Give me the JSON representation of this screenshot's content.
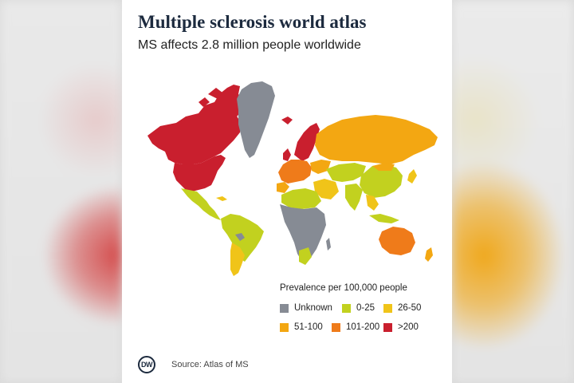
{
  "header": {
    "title": "Multiple sclerosis world atlas",
    "subtitle": "MS affects 2.8 million people worldwide"
  },
  "legend": {
    "title": "Prevalence per 100,000 people",
    "items": [
      {
        "label": "Unknown",
        "color": "#868b94"
      },
      {
        "label": "0-25",
        "color": "#c2d11f"
      },
      {
        "label": "26-50",
        "color": "#f0c419"
      },
      {
        "label": "51-100",
        "color": "#f3a712"
      },
      {
        "label": "101-200",
        "color": "#ef7b1a"
      },
      {
        "label": ">200",
        "color": "#c91f2e"
      }
    ]
  },
  "footer": {
    "logo": "DW",
    "source": "Source: Atlas of MS"
  },
  "map_data": {
    "regions": [
      {
        "name": "Canada",
        "category": ">200"
      },
      {
        "name": "United States",
        "category": ">200"
      },
      {
        "name": "Greenland",
        "category": "Unknown"
      },
      {
        "name": "Nordic countries",
        "category": ">200"
      },
      {
        "name": "Western Europe",
        "category": "101-200"
      },
      {
        "name": "Russia",
        "category": "51-100"
      },
      {
        "name": "Central Asia",
        "category": "0-25"
      },
      {
        "name": "China",
        "category": "0-25"
      },
      {
        "name": "Mexico",
        "category": "0-25"
      },
      {
        "name": "South America",
        "category": "0-25"
      },
      {
        "name": "Argentina",
        "category": "26-50"
      },
      {
        "name": "Australia",
        "category": "101-200"
      },
      {
        "name": "Africa",
        "category": "Unknown"
      }
    ]
  }
}
